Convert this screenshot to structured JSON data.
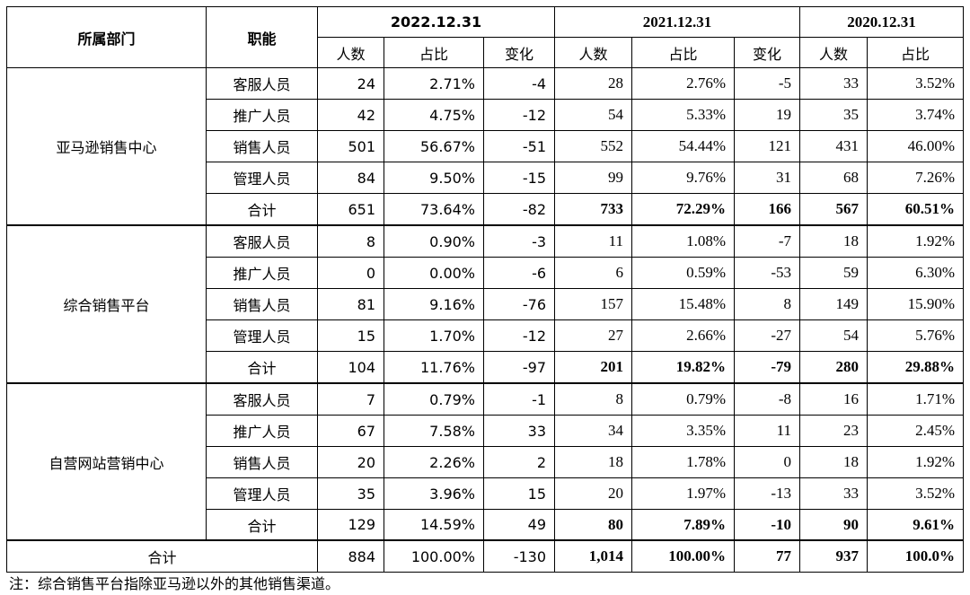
{
  "header": {
    "dept": "所属部门",
    "role": "职能",
    "periods": [
      "2022.12.31",
      "2021.12.31",
      "2020.12.31"
    ],
    "sub": {
      "people": "人数",
      "ratio": "占比",
      "change": "变化"
    }
  },
  "groups": [
    {
      "name": "亚马逊销售中心",
      "rows": [
        {
          "role": "客服人员",
          "v": [
            "24",
            "2.71%",
            "-4",
            "28",
            "2.76%",
            "-5",
            "33",
            "3.52%"
          ]
        },
        {
          "role": "推广人员",
          "v": [
            "42",
            "4.75%",
            "-12",
            "54",
            "5.33%",
            "19",
            "35",
            "3.74%"
          ]
        },
        {
          "role": "销售人员",
          "v": [
            "501",
            "56.67%",
            "-51",
            "552",
            "54.44%",
            "121",
            "431",
            "46.00%"
          ]
        },
        {
          "role": "管理人员",
          "v": [
            "84",
            "9.50%",
            "-15",
            "99",
            "9.76%",
            "31",
            "68",
            "7.26%"
          ]
        },
        {
          "role": "合计",
          "v": [
            "651",
            "73.64%",
            "-82",
            "733",
            "72.29%",
            "166",
            "567",
            "60.51%"
          ]
        }
      ]
    },
    {
      "name": "综合销售平台",
      "rows": [
        {
          "role": "客服人员",
          "v": [
            "8",
            "0.90%",
            "-3",
            "11",
            "1.08%",
            "-7",
            "18",
            "1.92%"
          ]
        },
        {
          "role": "推广人员",
          "v": [
            "0",
            "0.00%",
            "-6",
            "6",
            "0.59%",
            "-53",
            "59",
            "6.30%"
          ]
        },
        {
          "role": "销售人员",
          "v": [
            "81",
            "9.16%",
            "-76",
            "157",
            "15.48%",
            "8",
            "149",
            "15.90%"
          ]
        },
        {
          "role": "管理人员",
          "v": [
            "15",
            "1.70%",
            "-12",
            "27",
            "2.66%",
            "-27",
            "54",
            "5.76%"
          ]
        },
        {
          "role": "合计",
          "v": [
            "104",
            "11.76%",
            "-97",
            "201",
            "19.82%",
            "-79",
            "280",
            "29.88%"
          ]
        }
      ]
    },
    {
      "name": "自营网站营销中心",
      "rows": [
        {
          "role": "客服人员",
          "v": [
            "7",
            "0.79%",
            "-1",
            "8",
            "0.79%",
            "-8",
            "16",
            "1.71%"
          ]
        },
        {
          "role": "推广人员",
          "v": [
            "67",
            "7.58%",
            "33",
            "34",
            "3.35%",
            "11",
            "23",
            "2.45%"
          ]
        },
        {
          "role": "销售人员",
          "v": [
            "20",
            "2.26%",
            "2",
            "18",
            "1.78%",
            "0",
            "18",
            "1.92%"
          ]
        },
        {
          "role": "管理人员",
          "v": [
            "35",
            "3.96%",
            "15",
            "20",
            "1.97%",
            "-13",
            "33",
            "3.52%"
          ]
        },
        {
          "role": "合计",
          "v": [
            "129",
            "14.59%",
            "49",
            "80",
            "7.89%",
            "-10",
            "90",
            "9.61%"
          ]
        }
      ]
    }
  ],
  "grand_total": {
    "label": "合计",
    "v": [
      "884",
      "100.00%",
      "-130",
      "1,014",
      "100.00%",
      "77",
      "937",
      "100.0%"
    ]
  },
  "note": "注：综合销售平台指除亚马逊以外的其他销售渠道。"
}
